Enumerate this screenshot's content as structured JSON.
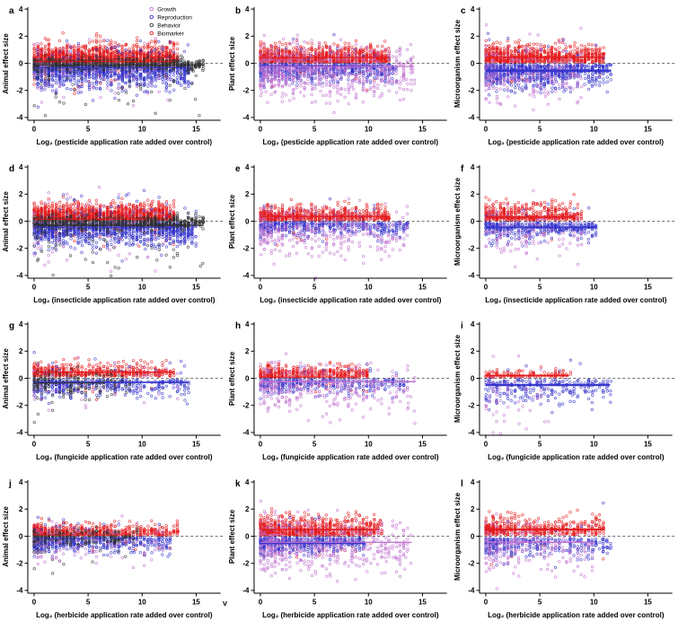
{
  "figure": {
    "background": "#ffffff",
    "stray_text": "v"
  },
  "palette": {
    "red": "#e41a1c",
    "blue": "#3333cc",
    "black": "#2f2f2f",
    "purple": "#bf6fd0"
  },
  "legend": {
    "position": "top-right-panel-a",
    "items": [
      {
        "label": "Growth",
        "color": "purple"
      },
      {
        "label": "Reproduction",
        "color": "blue"
      },
      {
        "label": "Behavior",
        "color": "black"
      },
      {
        "label": "Biomarker",
        "color": "red"
      }
    ]
  },
  "axes": {
    "xticks": [
      0,
      5,
      10,
      15
    ],
    "yticks": [
      -4,
      -2,
      0,
      2,
      4
    ],
    "xlim": [
      0,
      16
    ],
    "ylim": [
      -4.4,
      4.4
    ],
    "grid": false,
    "zero_line_style": "dashed"
  },
  "chart_data": [
    {
      "panel_label": "a",
      "type": "scatter",
      "ylabel": "Animal effect size",
      "xlabel": "Log₂ (pesticide application rate added over control)",
      "has_legend": true,
      "zero_line": true,
      "series": [
        {
          "name": "Biomarker",
          "color": "red",
          "kind": "pos",
          "n": 1400,
          "xmax": 13.2,
          "xpow": 1.1,
          "base": 0.04,
          "spread": 0.6,
          "flip": 0.04
        },
        {
          "name": "Reproduction",
          "color": "blue",
          "kind": "neg",
          "n": 1150,
          "xmax": 14.5,
          "xpow": 1.15,
          "base": 0.06,
          "spread": 0.8,
          "flip": 0.03
        },
        {
          "name": "Behavior",
          "color": "black",
          "kind": "center",
          "n": 700,
          "xmax": 15.7,
          "xpow": 1.2,
          "center": -0.07,
          "spread": 0.22,
          "outlier": 0.08,
          "omag": 1.5
        },
        {
          "name": "Growth",
          "color": "purple",
          "kind": "center",
          "n": 90,
          "xmax": 13,
          "center": -0.5,
          "spread": 1.3
        }
      ],
      "trend_lines": [
        {
          "color": "red",
          "y": 0.12,
          "x0": 0,
          "x1": 12.8,
          "width": 1.1
        },
        {
          "color": "black",
          "y": -0.12,
          "x0": 0,
          "x1": 15.7,
          "width": 1.1
        },
        {
          "color": "blue",
          "y": -0.32,
          "x0": 0,
          "x1": 14.3,
          "width": 1.2
        }
      ]
    },
    {
      "panel_label": "b",
      "type": "scatter",
      "ylabel": "Plant effect size",
      "xlabel": "Log₂ (pesticide application rate added over control)",
      "has_legend": false,
      "zero_line": true,
      "series": [
        {
          "name": "Biomarker",
          "color": "red",
          "kind": "pos",
          "n": 1100,
          "xmax": 11.9,
          "xpow": 1.2,
          "base": 0.05,
          "spread": 0.55,
          "flip": 0.02
        },
        {
          "name": "Reproduction",
          "color": "blue",
          "kind": "neg",
          "n": 600,
          "xmax": 12.5,
          "xpow": 1.3,
          "base": 0.05,
          "spread": 0.6,
          "flip": 0.02
        },
        {
          "name": "Growth",
          "color": "purple",
          "kind": "center",
          "n": 650,
          "xmax": 14.2,
          "center": -0.7,
          "spread": 1.0
        }
      ],
      "trend_lines": [
        {
          "color": "red",
          "y": 0.42,
          "x0": 0,
          "x1": 11.9,
          "width": 1.4
        },
        {
          "color": "blue",
          "y": -0.18,
          "x0": 0,
          "x1": 10.9,
          "width": 1.0
        },
        {
          "color": "purple",
          "y": -0.24,
          "x0": 0,
          "x1": 14.2,
          "width": 1.2
        }
      ]
    },
    {
      "panel_label": "c",
      "type": "scatter",
      "ylabel": "Microorganism effect size",
      "xlabel": "Log₂ (pesticide application rate added over control)",
      "has_legend": false,
      "zero_line": true,
      "series": [
        {
          "name": "Biomarker",
          "color": "red",
          "kind": "pos",
          "n": 850,
          "xmax": 11,
          "xpow": 1.3,
          "base": 0.05,
          "spread": 0.6,
          "flip": 0.02
        },
        {
          "name": "Reproduction",
          "color": "blue",
          "kind": "neg",
          "n": 750,
          "xmax": 11.6,
          "xpow": 1.3,
          "base": 0.1,
          "spread": 0.75,
          "flip": 0.02
        },
        {
          "name": "Growth",
          "color": "purple",
          "kind": "center",
          "n": 220,
          "xmax": 9,
          "center": -0.9,
          "spread": 1.1
        }
      ],
      "trend_lines": [
        {
          "color": "red",
          "y": 0.45,
          "x0": 0,
          "x1": 11,
          "width": 1.4
        },
        {
          "color": "blue",
          "y": -0.55,
          "x0": 0,
          "x1": 11.6,
          "width": 2.4,
          "band": 0.12
        }
      ]
    },
    {
      "panel_label": "d",
      "type": "scatter",
      "ylabel": "Animal effect size",
      "xlabel": "Log₂ (insecticide application rate added over control)",
      "has_legend": false,
      "zero_line": true,
      "series": [
        {
          "name": "Biomarker",
          "color": "red",
          "kind": "pos",
          "n": 1400,
          "xmax": 13,
          "xpow": 1.1,
          "base": 0.04,
          "spread": 0.55,
          "flip": 0.03
        },
        {
          "name": "Reproduction",
          "color": "blue",
          "kind": "neg",
          "n": 1150,
          "xmax": 15,
          "xpow": 1.15,
          "base": 0.06,
          "spread": 0.8,
          "flip": 0.03
        },
        {
          "name": "Behavior",
          "color": "black",
          "kind": "center",
          "n": 700,
          "xmax": 15.7,
          "xpow": 1.2,
          "center": -0.1,
          "spread": 0.25,
          "outlier": 0.08,
          "omag": 1.5
        },
        {
          "name": "Growth",
          "color": "purple",
          "kind": "center",
          "n": 80,
          "xmax": 12,
          "center": -0.4,
          "spread": 1.4
        }
      ],
      "trend_lines": [
        {
          "color": "red",
          "y": 0.15,
          "x0": 0,
          "x1": 10.5,
          "width": 1.0
        },
        {
          "color": "black",
          "y": -0.3,
          "x0": 0,
          "x1": 15.7,
          "width": 1.2,
          "band": 0.07
        },
        {
          "color": "blue",
          "y": -0.45,
          "x0": 0,
          "x1": 13,
          "width": 1.2
        }
      ]
    },
    {
      "panel_label": "e",
      "type": "scatter",
      "ylabel": "Plant effect size",
      "xlabel": "Log₂ (insecticide application rate added over control)",
      "has_legend": false,
      "zero_line": true,
      "series": [
        {
          "name": "Biomarker",
          "color": "red",
          "kind": "pos",
          "n": 650,
          "xmax": 12,
          "xpow": 1.4,
          "base": 0.05,
          "spread": 0.5,
          "flip": 0.02
        },
        {
          "name": "Reproduction",
          "color": "blue",
          "kind": "neg",
          "n": 450,
          "xmax": 13.8,
          "xpow": 1.4,
          "base": 0.05,
          "spread": 0.5,
          "flip": 0.02
        },
        {
          "name": "Growth",
          "color": "purple",
          "kind": "center",
          "n": 320,
          "xmax": 13.8,
          "center": -0.8,
          "spread": 0.9
        }
      ],
      "trend_lines": [
        {
          "color": "red",
          "y": 0.35,
          "x0": 0,
          "x1": 12,
          "width": 1.4,
          "band": 0.13
        }
      ]
    },
    {
      "panel_label": "f",
      "type": "scatter",
      "ylabel": "Microorganism effect size",
      "xlabel": "Log₂ (insecticide application rate added over control)",
      "has_legend": false,
      "zero_line": true,
      "series": [
        {
          "name": "Biomarker",
          "color": "red",
          "kind": "pos",
          "n": 450,
          "xmax": 8.8,
          "xpow": 1.3,
          "base": 0.06,
          "spread": 0.6,
          "flip": 0.02
        },
        {
          "name": "Reproduction",
          "color": "blue",
          "kind": "neg",
          "n": 380,
          "xmax": 10.3,
          "xpow": 1.3,
          "base": 0.1,
          "spread": 0.6,
          "flip": 0.02
        },
        {
          "name": "Growth",
          "color": "purple",
          "kind": "center",
          "n": 110,
          "xmax": 9,
          "center": -0.8,
          "spread": 1.0
        }
      ],
      "trend_lines": [
        {
          "color": "red",
          "y": 0.3,
          "x0": 0,
          "x1": 8.2,
          "width": 1.8,
          "band": 0.13
        },
        {
          "color": "blue",
          "y": -0.45,
          "x0": 0,
          "x1": 10.3,
          "width": 1.8,
          "band": 0.13
        }
      ]
    },
    {
      "panel_label": "g",
      "type": "scatter",
      "ylabel": "Animal effect size",
      "xlabel": "Log₂ (fungicide application rate added over control)",
      "has_legend": false,
      "zero_line": true,
      "series": [
        {
          "name": "Biomarker",
          "color": "red",
          "kind": "pos",
          "n": 480,
          "xmax": 13,
          "xpow": 1.3,
          "base": 0.15,
          "spread": 0.45,
          "flip": 0.04
        },
        {
          "name": "Reproduction",
          "color": "blue",
          "kind": "neg",
          "n": 430,
          "xmax": 14.3,
          "xpow": 1.3,
          "base": 0.1,
          "spread": 0.6,
          "flip": 0.04
        },
        {
          "name": "Behavior",
          "color": "black",
          "kind": "center",
          "n": 170,
          "xmax": 9,
          "xpow": 1.5,
          "center": -0.3,
          "spread": 0.45,
          "outlier": 0.05,
          "omag": 1.3
        },
        {
          "name": "Growth",
          "color": "purple",
          "kind": "center",
          "n": 50,
          "xmax": 14,
          "center": -0.3,
          "spread": 1.0
        }
      ],
      "trend_lines": [
        {
          "color": "red",
          "y": 0.45,
          "x0": 0,
          "x1": 13,
          "width": 1.6
        },
        {
          "color": "blue",
          "y": -0.3,
          "x0": 0,
          "x1": 14.3,
          "width": 1.6,
          "band": 0.07
        },
        {
          "color": "black",
          "y": -0.35,
          "x0": 0,
          "x1": 6.5,
          "width": 1.2
        }
      ]
    },
    {
      "panel_label": "h",
      "type": "scatter",
      "ylabel": "Plant effect size",
      "xlabel": "Log₂ (fungicide application rate added over control)",
      "has_legend": false,
      "zero_line": true,
      "series": [
        {
          "name": "Biomarker",
          "color": "red",
          "kind": "pos",
          "n": 430,
          "xmax": 10,
          "xpow": 1.4,
          "base": 0.05,
          "spread": 0.4,
          "flip": 0.05
        },
        {
          "name": "Reproduction",
          "color": "blue",
          "kind": "neg",
          "n": 330,
          "xmax": 13.5,
          "xpow": 1.2,
          "base": 0.05,
          "spread": 0.5,
          "flip": 0.03
        },
        {
          "name": "Growth",
          "color": "purple",
          "kind": "center",
          "n": 300,
          "xmax": 14.3,
          "center": -0.8,
          "spread": 0.95
        }
      ],
      "trend_lines": [
        {
          "color": "red",
          "y": 0.08,
          "x0": 0,
          "x1": 9,
          "width": 1.0
        },
        {
          "color": "purple",
          "y": -0.25,
          "x0": 0,
          "x1": 14.3,
          "width": 1.6
        }
      ]
    },
    {
      "panel_label": "i",
      "type": "scatter",
      "ylabel": "Microorganism effect size",
      "xlabel": "Log₂ (fungicide application rate added over control)",
      "has_legend": false,
      "zero_line": true,
      "series": [
        {
          "name": "Biomarker",
          "color": "red",
          "kind": "pos",
          "n": 110,
          "xmax": 7.8,
          "xpow": 1.3,
          "base": 0.06,
          "spread": 0.25,
          "flip": 0.02
        },
        {
          "name": "Reproduction",
          "color": "blue",
          "kind": "neg",
          "n": 260,
          "xmax": 11.6,
          "xpow": 1.1,
          "base": 0.1,
          "spread": 0.85,
          "flip": 0.02
        },
        {
          "name": "Growth",
          "color": "purple",
          "kind": "center",
          "n": 55,
          "xmax": 6,
          "center": -1.5,
          "spread": 1.3
        }
      ],
      "trend_lines": [
        {
          "color": "red",
          "y": 0.2,
          "x0": 0,
          "x1": 7.7,
          "width": 1.5,
          "band": 0.1
        },
        {
          "color": "blue",
          "y": -0.5,
          "x0": 0,
          "x1": 11.5,
          "width": 2.0,
          "band": 0.12
        }
      ]
    },
    {
      "panel_label": "j",
      "type": "scatter",
      "ylabel": "Animal effect size",
      "xlabel": "Log₂ (herbicide application rate added over control)",
      "has_legend": false,
      "zero_line": true,
      "series": [
        {
          "name": "Biomarker",
          "color": "red",
          "kind": "pos",
          "n": 650,
          "xmax": 13.4,
          "xpow": 2.0,
          "base": 0.03,
          "spread": 0.38,
          "flip": 0.03
        },
        {
          "name": "Reproduction",
          "color": "blue",
          "kind": "neg",
          "n": 550,
          "xmax": 12.6,
          "xpow": 1.9,
          "base": 0.05,
          "spread": 0.55,
          "flip": 0.03
        },
        {
          "name": "Behavior",
          "color": "black",
          "kind": "center",
          "n": 240,
          "xmax": 9.5,
          "xpow": 1.6,
          "center": -0.1,
          "spread": 0.3,
          "outlier": 0.06,
          "omag": 1.4
        },
        {
          "name": "Growth",
          "color": "purple",
          "kind": "center",
          "n": 110,
          "xmax": 12,
          "center": -0.6,
          "spread": 0.9
        }
      ],
      "trend_lines": [
        {
          "color": "red",
          "y": 0.1,
          "x0": 0,
          "x1": 9,
          "width": 0.9
        },
        {
          "color": "blue",
          "y": -0.15,
          "x0": 0,
          "x1": 9,
          "width": 0.9
        }
      ]
    },
    {
      "panel_label": "k",
      "type": "scatter",
      "ylabel": "Plant effect size",
      "xlabel": "Log₂ (herbicide application rate added over control)",
      "has_legend": false,
      "zero_line": true,
      "series": [
        {
          "name": "Biomarker",
          "color": "red",
          "kind": "pos",
          "n": 800,
          "xmax": 11.2,
          "xpow": 1.5,
          "base": 0.06,
          "spread": 0.6,
          "flip": 0.02
        },
        {
          "name": "Reproduction",
          "color": "blue",
          "kind": "neg",
          "n": 450,
          "xmax": 9.7,
          "xpow": 1.4,
          "base": 0.1,
          "spread": 0.55,
          "flip": 0.02
        },
        {
          "name": "Growth",
          "color": "purple",
          "kind": "center",
          "n": 480,
          "xmax": 14,
          "center": -0.8,
          "spread": 1.0
        }
      ],
      "trend_lines": [
        {
          "color": "red",
          "y": 0.5,
          "x0": 0,
          "x1": 11,
          "width": 1.6
        },
        {
          "color": "blue",
          "y": -0.5,
          "x0": 0,
          "x1": 9.7,
          "width": 1.8,
          "band": 0.15
        },
        {
          "color": "purple",
          "y": -0.45,
          "x0": 0,
          "x1": 14,
          "width": 1.4
        }
      ]
    },
    {
      "panel_label": "l",
      "type": "scatter",
      "ylabel": "Microorganism effect size",
      "xlabel": "Log₂ (herbicide application rate added over control)",
      "has_legend": false,
      "zero_line": true,
      "series": [
        {
          "name": "Biomarker",
          "color": "red",
          "kind": "pos",
          "n": 480,
          "xmax": 11,
          "xpow": 1.4,
          "base": 0.1,
          "spread": 0.6,
          "flip": 0.02
        },
        {
          "name": "Reproduction",
          "color": "blue",
          "kind": "neg",
          "n": 330,
          "xmax": 11.6,
          "xpow": 1.4,
          "base": 0.15,
          "spread": 0.7,
          "flip": 0.02
        },
        {
          "name": "Growth",
          "color": "purple",
          "kind": "center",
          "n": 190,
          "xmax": 10,
          "center": -0.9,
          "spread": 1.0
        }
      ],
      "trend_lines": [
        {
          "color": "red",
          "y": 0.5,
          "x0": 0,
          "x1": 11,
          "width": 2.0,
          "band": 0.1
        },
        {
          "color": "purple",
          "y": -0.45,
          "x0": 0,
          "x1": 10,
          "width": 1.5,
          "band": 0.07
        }
      ]
    }
  ]
}
